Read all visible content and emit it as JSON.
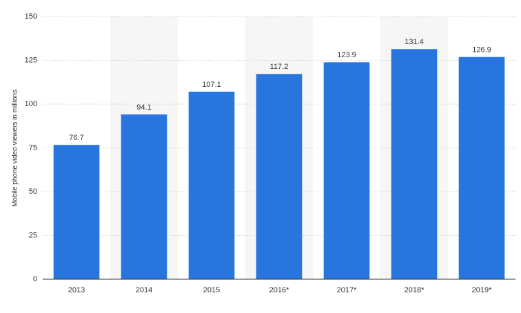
{
  "chart_data": {
    "type": "bar",
    "y_label": "Mobile phone video viewers in millions",
    "categories": [
      "2013",
      "2014",
      "2015",
      "2016*",
      "2017*",
      "2018*",
      "2019*"
    ],
    "values": [
      76.7,
      94.1,
      107.1,
      117.2,
      123.9,
      131.4,
      126.9
    ],
    "color": "#2876dd",
    "ylim": [
      0,
      150
    ],
    "yticks": [
      0,
      25,
      50,
      75,
      100,
      125,
      150
    ],
    "grid": true
  }
}
